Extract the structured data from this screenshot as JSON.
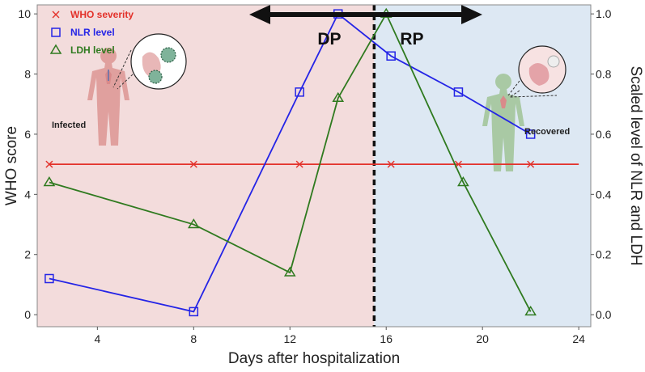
{
  "chart_data": {
    "type": "line",
    "xlabel": "Days after hospitalization",
    "ylabel_left": "WHO score",
    "ylabel_right": "Scaled level of NLR and LDH",
    "xlim": [
      1.5,
      24.5
    ],
    "ylim_left": [
      -0.4,
      10.3
    ],
    "ylim_right": [
      -0.04,
      1.03
    ],
    "x_ticks": [
      4,
      8,
      12,
      16,
      20,
      24
    ],
    "y_ticks_left": [
      0,
      2,
      4,
      6,
      8,
      10
    ],
    "y_ticks_right": [
      0.0,
      0.2,
      0.4,
      0.6,
      0.8,
      1.0
    ],
    "y_ticks_right_labels": [
      "0.0",
      "0.2",
      "0.4",
      "0.6",
      "0.8",
      "1.0"
    ],
    "grid": false,
    "legend_position": "top-left",
    "divider_x": 15.5,
    "regions": [
      {
        "label": "DP",
        "x_start": 1.5,
        "x_end": 15.5,
        "color": "#f3dcdc"
      },
      {
        "label": "RP",
        "x_start": 15.5,
        "x_end": 24.5,
        "color": "#dde8f3"
      }
    ],
    "series": [
      {
        "name": "WHO severity",
        "axis": "left",
        "color": "#e3312a",
        "marker": "x",
        "x": [
          2,
          8,
          12.4,
          16.2,
          19,
          22
        ],
        "y": [
          5,
          5,
          5,
          5,
          5,
          5
        ],
        "line_x": [
          2,
          24
        ]
      },
      {
        "name": "NLR level",
        "axis": "right",
        "color": "#2424e6",
        "marker": "square",
        "x": [
          2,
          8,
          12.4,
          14,
          16.2,
          19,
          22
        ],
        "y": [
          0.12,
          0.01,
          0.74,
          1.0,
          0.86,
          0.74,
          0.6
        ]
      },
      {
        "name": "LDH level",
        "axis": "right",
        "color": "#2f7a1f",
        "marker": "triangle",
        "x": [
          2,
          8,
          12,
          14,
          16,
          19.2,
          22
        ],
        "y": [
          0.44,
          0.3,
          0.14,
          0.72,
          1.0,
          0.44,
          0.01
        ]
      }
    ]
  },
  "figure_labels": {
    "infected": "Infected",
    "recovered": "Recovered"
  }
}
